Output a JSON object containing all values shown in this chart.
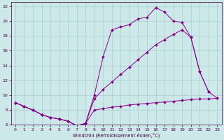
{
  "xlabel": "Windchill (Refroidissement éolien,°C)",
  "bg_color": "#cce8e8",
  "line_color": "#880088",
  "grid_color": "#aacece",
  "xlim": [
    -0.5,
    23.5
  ],
  "ylim": [
    6,
    22.5
  ],
  "yticks": [
    6,
    8,
    10,
    12,
    14,
    16,
    18,
    20,
    22
  ],
  "xticks": [
    0,
    1,
    2,
    3,
    4,
    5,
    6,
    7,
    8,
    9,
    10,
    11,
    12,
    13,
    14,
    15,
    16,
    17,
    18,
    19,
    20,
    21,
    22,
    23
  ],
  "s1x": [
    0,
    1,
    2,
    3,
    4,
    5,
    6,
    7,
    8,
    9,
    10,
    11,
    12,
    13,
    14,
    15,
    16,
    17,
    18,
    19,
    20,
    21,
    22,
    23
  ],
  "s1y": [
    9.0,
    8.5,
    8.0,
    7.4,
    7.0,
    6.8,
    6.5,
    5.9,
    6.2,
    8.0,
    8.2,
    8.4,
    8.5,
    8.7,
    8.8,
    8.9,
    9.0,
    9.1,
    9.2,
    9.3,
    9.4,
    9.5,
    9.5,
    9.6
  ],
  "s2x": [
    0,
    1,
    2,
    3,
    4,
    5,
    6,
    7,
    8,
    9,
    10,
    11,
    12,
    13,
    14,
    15,
    16,
    17,
    18,
    19,
    20,
    21,
    22
  ],
  "s2y": [
    9.0,
    8.5,
    8.0,
    7.4,
    7.0,
    6.8,
    6.5,
    5.9,
    6.2,
    10.0,
    15.2,
    18.8,
    19.2,
    19.5,
    20.3,
    20.5,
    21.8,
    21.2,
    20.0,
    19.8,
    17.8,
    13.2,
    10.5
  ],
  "s3x": [
    0,
    1,
    2,
    3,
    4,
    5,
    6,
    7,
    8,
    9,
    10,
    11,
    12,
    13,
    14,
    15,
    16,
    17,
    18,
    19,
    20,
    21,
    22,
    23
  ],
  "s3y": [
    9.0,
    8.5,
    8.0,
    7.4,
    7.0,
    6.8,
    6.5,
    5.9,
    6.2,
    9.5,
    10.8,
    11.8,
    12.8,
    13.8,
    14.8,
    15.8,
    16.8,
    17.5,
    18.2,
    18.8,
    17.8,
    13.2,
    10.5,
    9.6
  ]
}
